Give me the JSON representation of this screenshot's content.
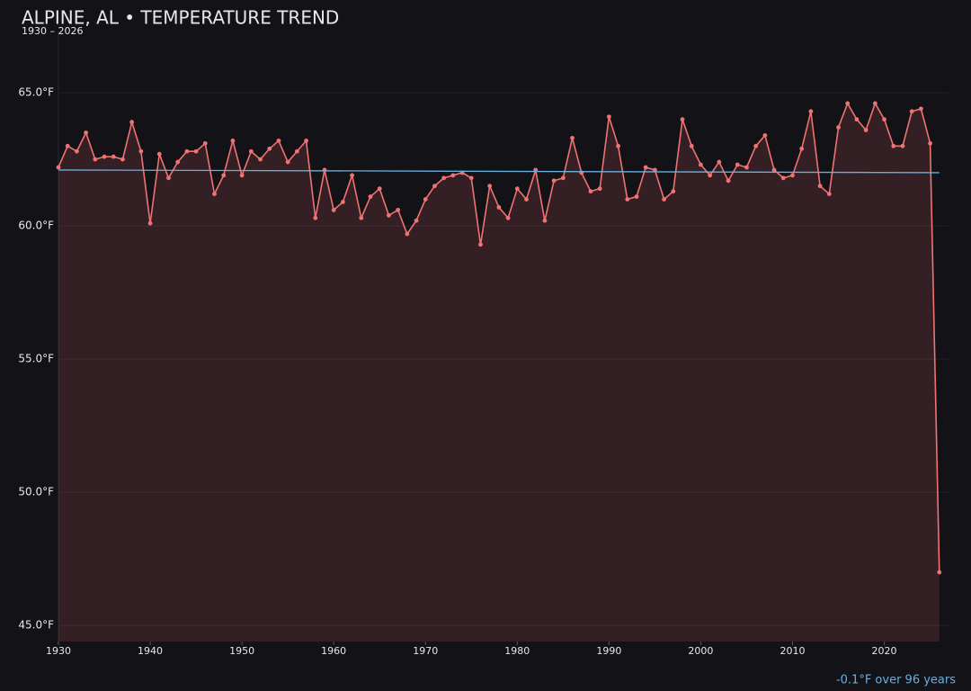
{
  "chart_data": {
    "type": "line",
    "title": "ALPINE, AL • TEMPERATURE TREND",
    "subtitle": "1930 – 2026",
    "annotation": "-0.1°F over 96 years",
    "x": [
      1930,
      1931,
      1932,
      1933,
      1934,
      1935,
      1936,
      1937,
      1938,
      1939,
      1940,
      1941,
      1942,
      1943,
      1944,
      1945,
      1946,
      1947,
      1948,
      1949,
      1950,
      1951,
      1952,
      1953,
      1954,
      1955,
      1956,
      1957,
      1958,
      1959,
      1960,
      1961,
      1962,
      1963,
      1964,
      1965,
      1966,
      1967,
      1968,
      1969,
      1970,
      1971,
      1972,
      1973,
      1974,
      1975,
      1976,
      1977,
      1978,
      1979,
      1980,
      1981,
      1982,
      1983,
      1984,
      1985,
      1986,
      1987,
      1988,
      1989,
      1990,
      1991,
      1992,
      1993,
      1994,
      1995,
      1996,
      1997,
      1998,
      1999,
      2000,
      2001,
      2002,
      2003,
      2004,
      2005,
      2006,
      2007,
      2008,
      2009,
      2010,
      2011,
      2012,
      2013,
      2014,
      2015,
      2016,
      2017,
      2018,
      2019,
      2020,
      2021,
      2022,
      2023,
      2024,
      2025,
      2026
    ],
    "series": [
      {
        "color": "#f07272",
        "values": [
          62.2,
          63.0,
          62.8,
          63.5,
          62.5,
          62.6,
          62.6,
          62.5,
          63.9,
          62.8,
          60.1,
          62.7,
          61.8,
          62.4,
          62.8,
          62.8,
          63.1,
          61.2,
          61.9,
          63.2,
          61.9,
          62.8,
          62.5,
          62.9,
          63.2,
          62.4,
          62.8,
          63.2,
          60.3,
          62.1,
          60.6,
          60.9,
          61.9,
          60.3,
          61.1,
          61.4,
          60.4,
          60.6,
          59.7,
          60.2,
          61.0,
          61.5,
          61.8,
          61.9,
          62.0,
          61.8,
          59.3,
          61.5,
          60.7,
          60.3,
          61.4,
          61.0,
          62.1,
          60.2,
          61.7,
          61.8,
          63.3,
          62.0,
          61.3,
          61.4,
          64.1,
          63.0,
          61.0,
          61.1,
          62.2,
          62.1,
          61.0,
          61.3,
          64.0,
          63.0,
          62.3,
          61.9,
          62.4,
          61.7,
          62.3,
          62.2,
          63.0,
          63.4,
          62.1,
          61.8,
          61.9,
          62.9,
          64.3,
          61.5,
          61.2,
          63.7,
          64.6,
          64.0,
          63.6,
          64.6,
          64.0,
          63.0,
          63.0,
          64.3,
          64.4,
          63.1,
          47.0
        ]
      }
    ],
    "trend": {
      "color": "#6ab0de",
      "x": [
        1930,
        2026
      ],
      "values": [
        62.1,
        62.0
      ]
    },
    "xlim": [
      1930,
      2027
    ],
    "ylim": [
      44.4,
      67.3
    ],
    "xticks": [
      1930,
      1940,
      1950,
      1960,
      1970,
      1980,
      1990,
      2000,
      2010,
      2020
    ],
    "yticks": [
      {
        "value": 45,
        "label": "45.0°F"
      },
      {
        "value": 50,
        "label": "50.0°F"
      },
      {
        "value": 55,
        "label": "55.0°F"
      },
      {
        "value": 60,
        "label": "60.0°F"
      },
      {
        "value": 65,
        "label": "65.0°F"
      }
    ],
    "grid": true
  }
}
